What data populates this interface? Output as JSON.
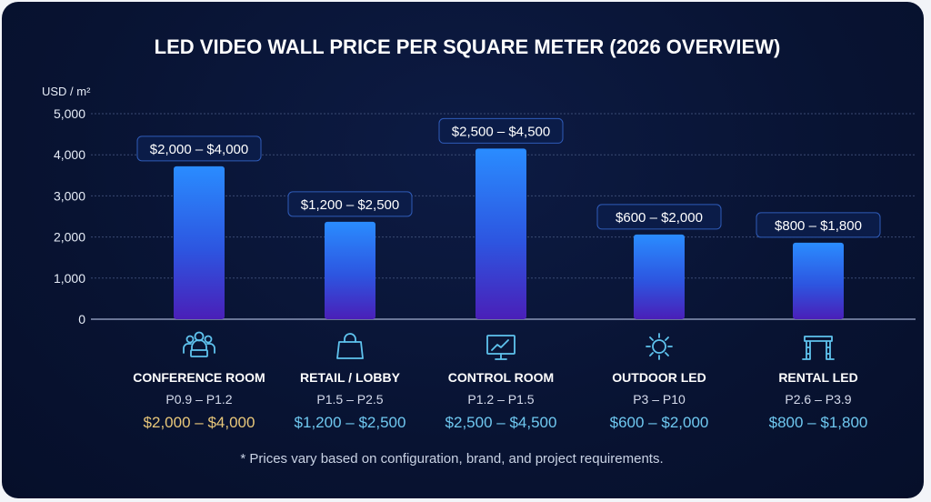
{
  "chart_data": {
    "type": "bar",
    "title": "LED VIDEO WALL PRICE PER SQUARE METER (2026 OVERVIEW)",
    "ylabel": "USD / m²",
    "xlabel": "",
    "ylim": [
      0,
      5000
    ],
    "yticks": [
      0,
      1000,
      2000,
      3000,
      4000,
      5000
    ],
    "ytick_labels": [
      "0",
      "1,000",
      "2,000",
      "3,000",
      "4,000",
      "5,000"
    ],
    "grid": true,
    "categories": [
      "CONFERENCE ROOM",
      "RETAIL / LOBBY",
      "CONTROL ROOM",
      "OUTDOOR LED",
      "RENTAL LED"
    ],
    "values": [
      3720,
      2370,
      4150,
      2060,
      1860
    ],
    "data_labels": [
      "$2,000 – $4,000",
      "$1,200 – $2,500",
      "$2,500 – $4,500",
      "$600 – $2,000",
      "$800 – $1,800"
    ],
    "pixel_pitch": [
      "P0.9 – P1.2",
      "P1.5 – P2.5",
      "P1.2 – P1.5",
      "P3 – P10",
      "P2.6 – P3.9"
    ],
    "price_ranges": [
      "$2,000 – $4,000",
      "$1,200 – $2,500",
      "$2,500 – $4,500",
      "$600 – $2,000",
      "$800 – $1,800"
    ],
    "icons": [
      "conference-people-icon",
      "shopping-bag-icon",
      "monitor-chart-icon",
      "sun-icon",
      "truss-stage-icon"
    ],
    "colors": {
      "bar_top": "#2a8cff",
      "bar_bottom": "#4a1fb8",
      "price_highlight": "#e8c77a",
      "price": "#6fc8f0",
      "icon": "#5fc3ee"
    },
    "footnote": "* Prices vary based on configuration, brand, and project requirements."
  }
}
